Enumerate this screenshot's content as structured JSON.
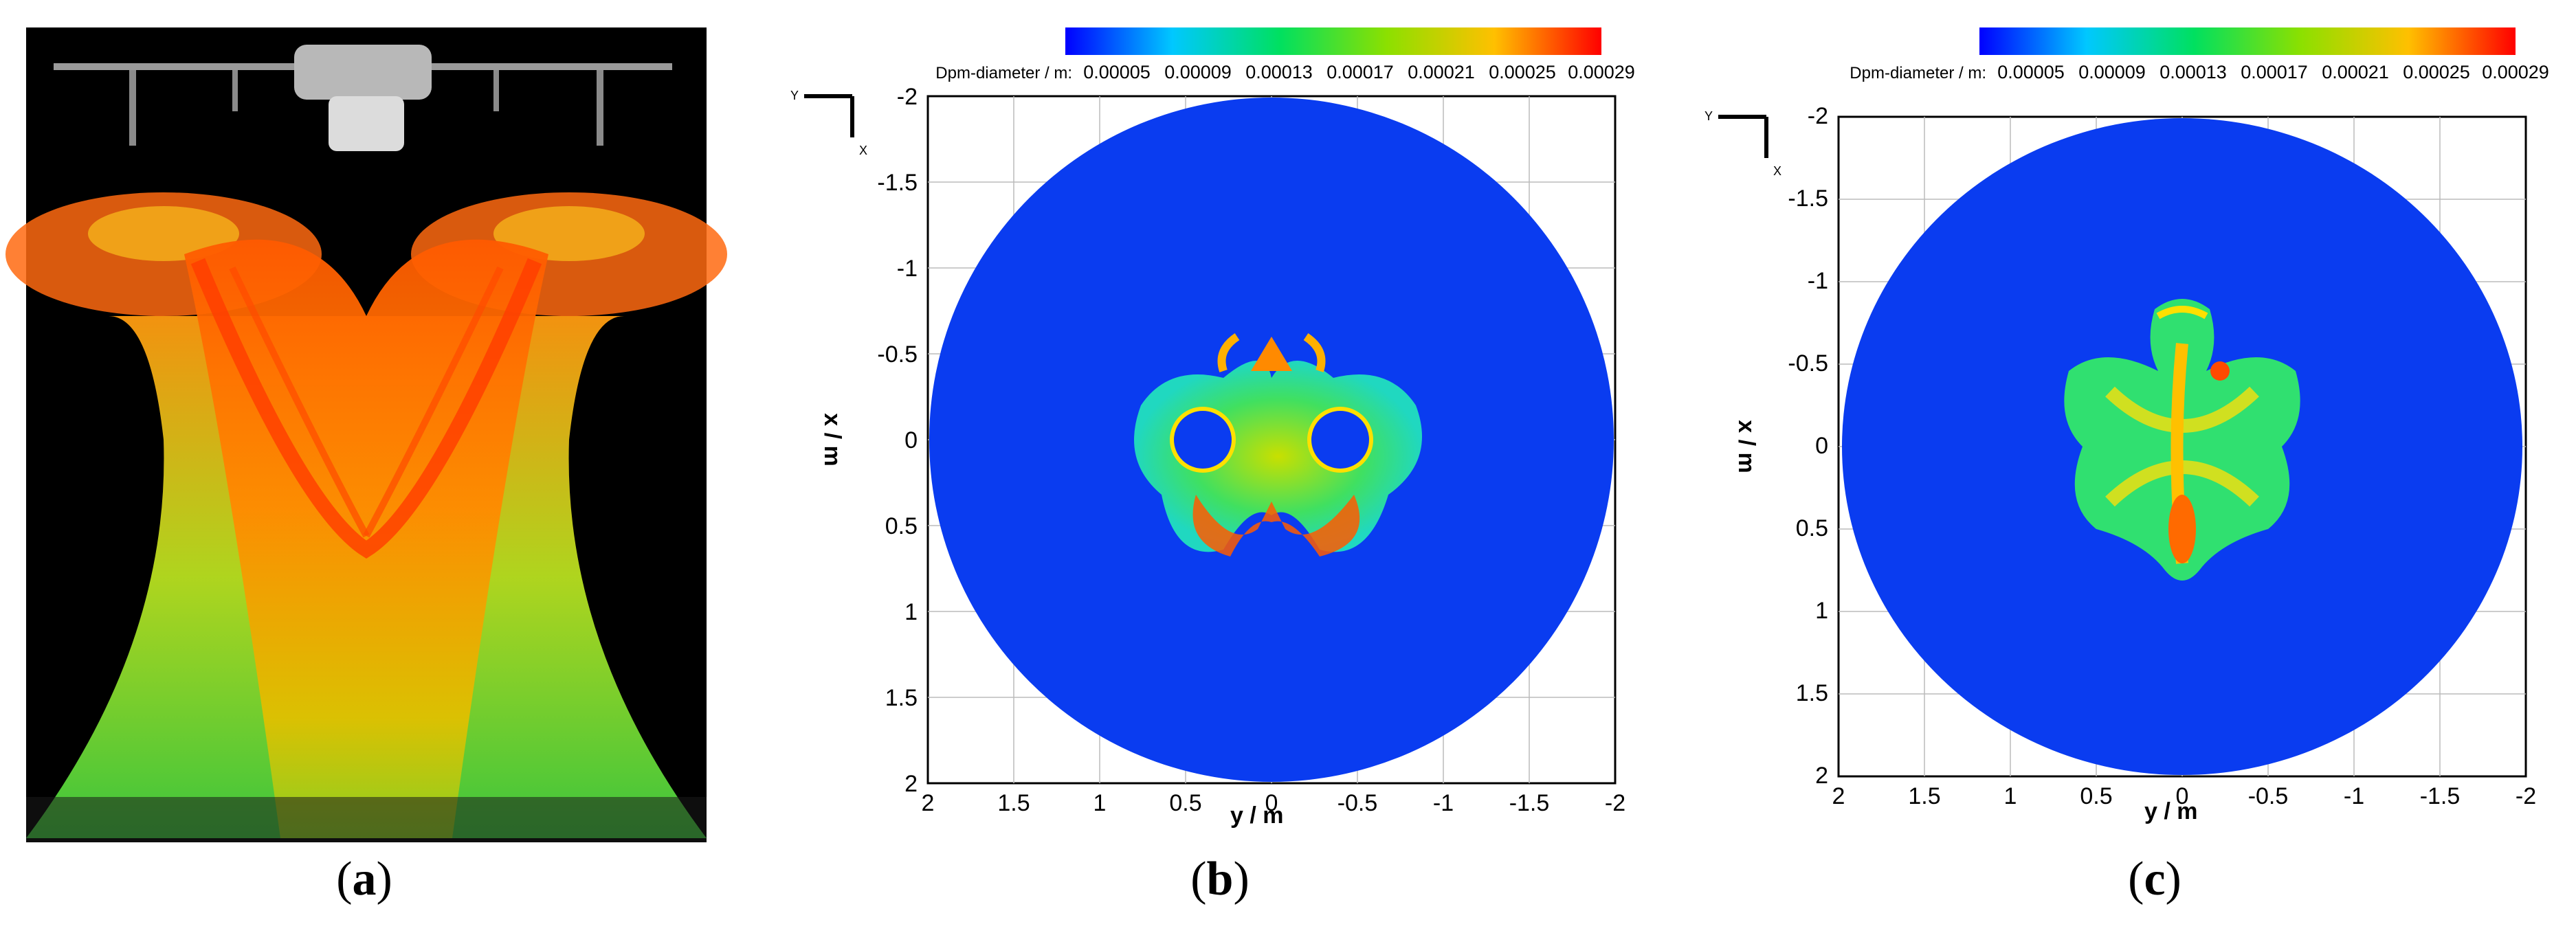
{
  "panels": [
    {
      "id": "a",
      "caption_open": "(",
      "caption_letter": "a",
      "caption_close": ")"
    },
    {
      "id": "b",
      "caption_open": "(",
      "caption_letter": "b",
      "caption_close": ")",
      "colorbar_label": "Dpm-diameter / m:",
      "colorbar_ticks": [
        "0.00005",
        "0.00009",
        "0.00013",
        "0.00017",
        "0.00021",
        "0.00025",
        "0.00029"
      ],
      "axis_x_label": "x / m",
      "axis_y_label": "y / m",
      "x_ticks": [
        "-2",
        "-1.5",
        "-1",
        "-0.5",
        "0",
        "0.5",
        "1",
        "1.5",
        "2"
      ],
      "y_ticks": [
        "2",
        "1.5",
        "1",
        "0.5",
        "0",
        "-0.5",
        "-1",
        "-1.5",
        "-2"
      ],
      "triad_y": "Y",
      "triad_x": "X"
    },
    {
      "id": "c",
      "caption_open": "(",
      "caption_letter": "c",
      "caption_close": ")",
      "colorbar_label": "Dpm-diameter / m:",
      "colorbar_ticks": [
        "0.00005",
        "0.00009",
        "0.00013",
        "0.00017",
        "0.00021",
        "0.00025",
        "0.00029"
      ],
      "axis_x_label": "x / m",
      "axis_y_label": "y / m",
      "x_ticks": [
        "-2",
        "-1.5",
        "-1",
        "-0.5",
        "0",
        "0.5",
        "1",
        "1.5",
        "2"
      ],
      "y_ticks": [
        "2",
        "1.5",
        "1",
        "0.5",
        "0",
        "-0.5",
        "-1",
        "-1.5",
        "-2"
      ],
      "triad_y": "Y",
      "triad_x": "X"
    }
  ],
  "colors": {
    "domain_blue": "#0a3cf0",
    "background_black": "#000000"
  }
}
